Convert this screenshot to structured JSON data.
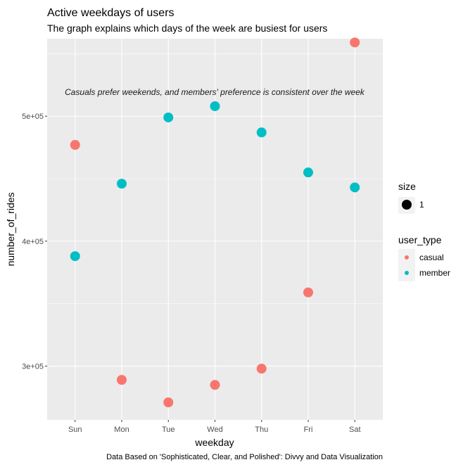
{
  "chart_data": {
    "type": "scatter",
    "title": "Active weekdays of users",
    "subtitle": "The graph explains which days of the week are busiest for users",
    "xlabel": "weekday",
    "ylabel": "number_of_rides",
    "categories": [
      "Sun",
      "Mon",
      "Tue",
      "Wed",
      "Thu",
      "Fri",
      "Sat"
    ],
    "y_ticks": [
      300000,
      400000,
      500000
    ],
    "y_tick_labels": [
      "3e+05",
      "4e+05",
      "5e+05"
    ],
    "ylim": [
      257000,
      562000
    ],
    "grid": true,
    "annotation": "Casuals prefer weekends, and members' preference is consistent over the week",
    "caption": "Data Based on 'Sophisticated, Clear, and Polished': Divvy and Data Visualization",
    "series": [
      {
        "name": "casual",
        "color": "#F8766D",
        "values": [
          477000,
          289000,
          271000,
          285000,
          298000,
          359000,
          559000
        ]
      },
      {
        "name": "member",
        "color": "#00BFC4",
        "values": [
          388000,
          446000,
          499000,
          508000,
          487000,
          455000,
          443000
        ]
      }
    ],
    "legends": [
      {
        "title": "size",
        "items": [
          {
            "label": "1"
          }
        ]
      },
      {
        "title": "user_type",
        "items": [
          {
            "label": "casual"
          },
          {
            "label": "member"
          }
        ]
      }
    ],
    "colors": {
      "panel": "#EBEBEB",
      "grid": "#FFFFFF",
      "casual": "#F8766D",
      "member": "#00BFC4"
    }
  }
}
